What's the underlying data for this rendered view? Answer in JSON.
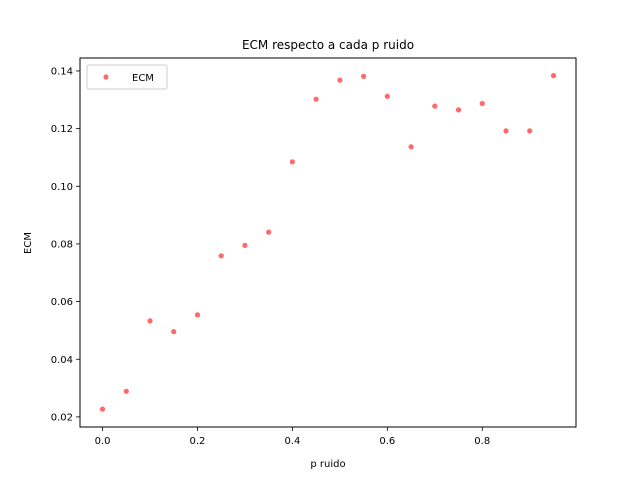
{
  "chart_data": {
    "type": "scatter",
    "title": "ECM respecto a cada p ruido",
    "xlabel": "p ruido",
    "ylabel": "ECM",
    "xlim": [
      -0.0475,
      0.9975
    ],
    "ylim": [
      0.0165,
      0.1445
    ],
    "xticks": [
      "0.0",
      "0.2",
      "0.4",
      "0.6",
      "0.8"
    ],
    "yticks": [
      "0.02",
      "0.04",
      "0.06",
      "0.08",
      "0.10",
      "0.12",
      "0.14"
    ],
    "grid": false,
    "legend": {
      "position": "upper-left",
      "entries": [
        "ECM"
      ]
    },
    "series": [
      {
        "name": "ECM",
        "color": "#ff4d4d",
        "x": [
          0.0,
          0.05,
          0.1,
          0.15,
          0.2,
          0.25,
          0.3,
          0.35,
          0.4,
          0.45,
          0.5,
          0.55,
          0.6,
          0.65,
          0.7,
          0.75,
          0.8,
          0.85,
          0.9,
          0.95
        ],
        "y": [
          0.0227,
          0.0289,
          0.0533,
          0.0496,
          0.0554,
          0.0759,
          0.0795,
          0.0841,
          0.1085,
          0.1302,
          0.1368,
          0.1381,
          0.1312,
          0.1137,
          0.1278,
          0.1265,
          0.1287,
          0.1192,
          0.1192,
          0.1384
        ]
      }
    ]
  }
}
